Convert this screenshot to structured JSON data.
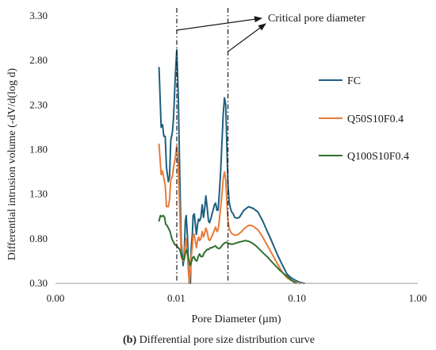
{
  "chart_data": {
    "type": "line",
    "xlabel": "Pore Diameter (µm)",
    "ylabel": "Differential intrusion volume (-dV/d(log d)",
    "x_scale": "log",
    "xlim": [
      0.001,
      1.0
    ],
    "ylim": [
      0.3,
      3.3
    ],
    "x_ticks": [
      0.001,
      0.01,
      0.1,
      1.0
    ],
    "x_tick_labels": [
      "0.00",
      "0.01",
      "0.10",
      "1.00"
    ],
    "y_ticks": [
      0.3,
      0.8,
      1.3,
      1.8,
      2.3,
      2.8,
      3.3
    ],
    "y_tick_labels": [
      "0.30",
      "0.80",
      "1.30",
      "1.80",
      "2.30",
      "2.80",
      "3.30"
    ],
    "grid": false,
    "legend_position": "right",
    "annotation": {
      "text": "Critical pore diameter",
      "targets_x": [
        0.0101,
        0.0268
      ]
    },
    "caption": {
      "bold": "(b)",
      "text": " Differential pore size distribution curve"
    },
    "series": [
      {
        "name": "FC",
        "color": "#1f5f7f",
        "x": [
          0.0072,
          0.0075,
          0.0077,
          0.0079,
          0.0081,
          0.0083,
          0.0086,
          0.0088,
          0.009,
          0.0093,
          0.0095,
          0.0098,
          0.0101,
          0.0104,
          0.0107,
          0.011,
          0.0114,
          0.0116,
          0.0119,
          0.0121,
          0.0124,
          0.0126,
          0.0128,
          0.0131,
          0.0133,
          0.0136,
          0.0138,
          0.0141,
          0.0144,
          0.0147,
          0.015,
          0.0153,
          0.0156,
          0.016,
          0.0164,
          0.0168,
          0.0172,
          0.0176,
          0.018,
          0.0185,
          0.0189,
          0.0193,
          0.0198,
          0.0202,
          0.0207,
          0.0212,
          0.0217,
          0.0222,
          0.0227,
          0.0233,
          0.0239,
          0.0245,
          0.0251,
          0.0257,
          0.0263,
          0.0268,
          0.0274,
          0.0281,
          0.0288,
          0.0296,
          0.0305,
          0.0318,
          0.0333,
          0.0348,
          0.0363,
          0.038,
          0.0397,
          0.0415,
          0.0434,
          0.0454,
          0.0475,
          0.0497,
          0.052,
          0.056,
          0.0605,
          0.065,
          0.07,
          0.076,
          0.083,
          0.09,
          0.098,
          0.106,
          0.115
        ],
        "y": [
          2.72,
          2.05,
          2.08,
          1.95,
          1.95,
          1.6,
          1.44,
          1.5,
          1.9,
          2.0,
          2.15,
          2.6,
          2.92,
          2.4,
          1.5,
          0.75,
          0.5,
          0.6,
          1.0,
          1.06,
          0.8,
          0.55,
          0.3,
          0.3,
          0.7,
          0.86,
          1.06,
          1.08,
          0.95,
          0.85,
          0.96,
          1.02,
          1.0,
          1.04,
          1.18,
          1.04,
          1.14,
          1.28,
          1.16,
          1.0,
          0.98,
          1.02,
          1.08,
          1.12,
          1.18,
          1.2,
          1.12,
          1.12,
          1.3,
          1.55,
          1.88,
          2.2,
          2.38,
          2.3,
          1.8,
          1.4,
          1.22,
          1.14,
          1.1,
          1.08,
          1.04,
          1.03,
          1.04,
          1.08,
          1.12,
          1.14,
          1.16,
          1.15,
          1.14,
          1.12,
          1.1,
          1.05,
          1.0,
          0.9,
          0.8,
          0.7,
          0.6,
          0.5,
          0.4,
          0.36,
          0.33,
          0.31,
          0.3
        ]
      },
      {
        "name": "Q50S10F0.4",
        "color": "#e87b3a",
        "x": [
          0.0072,
          0.0075,
          0.0077,
          0.0079,
          0.0081,
          0.0083,
          0.0086,
          0.0088,
          0.009,
          0.0093,
          0.0095,
          0.0098,
          0.0101,
          0.0104,
          0.0107,
          0.011,
          0.0114,
          0.0116,
          0.0119,
          0.0121,
          0.0124,
          0.0126,
          0.0128,
          0.0131,
          0.0133,
          0.0136,
          0.0138,
          0.0141,
          0.0144,
          0.0147,
          0.015,
          0.0153,
          0.0156,
          0.016,
          0.0164,
          0.0168,
          0.0172,
          0.0176,
          0.018,
          0.0185,
          0.0189,
          0.0193,
          0.0198,
          0.0202,
          0.0207,
          0.0212,
          0.0217,
          0.0222,
          0.0227,
          0.0233,
          0.0239,
          0.0245,
          0.0251,
          0.0257,
          0.0263,
          0.0268,
          0.0274,
          0.0281,
          0.0288,
          0.0296,
          0.0305,
          0.0318,
          0.0333,
          0.0348,
          0.0363,
          0.038,
          0.0397,
          0.0415,
          0.0434,
          0.0454,
          0.0475,
          0.0497,
          0.052,
          0.056,
          0.0605,
          0.065,
          0.07,
          0.076,
          0.083,
          0.09,
          0.098,
          0.106
        ],
        "y": [
          1.86,
          1.52,
          1.56,
          1.48,
          1.4,
          1.16,
          1.16,
          1.24,
          1.46,
          1.5,
          1.6,
          1.7,
          1.84,
          1.6,
          1.1,
          0.6,
          0.55,
          0.6,
          0.75,
          0.8,
          0.6,
          0.45,
          0.3,
          0.45,
          0.6,
          0.72,
          0.84,
          0.85,
          0.76,
          0.7,
          0.78,
          0.82,
          0.78,
          0.8,
          0.88,
          0.82,
          0.86,
          0.92,
          0.88,
          0.8,
          0.78,
          0.8,
          0.83,
          0.86,
          0.9,
          0.93,
          0.88,
          0.9,
          1.0,
          1.15,
          1.3,
          1.48,
          1.55,
          1.46,
          1.2,
          1.0,
          0.92,
          0.88,
          0.86,
          0.85,
          0.84,
          0.84,
          0.86,
          0.88,
          0.91,
          0.93,
          0.95,
          0.95,
          0.94,
          0.92,
          0.9,
          0.86,
          0.82,
          0.74,
          0.66,
          0.58,
          0.5,
          0.42,
          0.36,
          0.33,
          0.31,
          0.3
        ]
      },
      {
        "name": "Q100S10F0.4",
        "color": "#2f7030",
        "x": [
          0.0072,
          0.0074,
          0.0076,
          0.0078,
          0.008,
          0.0082,
          0.0084,
          0.0086,
          0.0089,
          0.0092,
          0.0095,
          0.0098,
          0.0101,
          0.0104,
          0.0107,
          0.011,
          0.0113,
          0.0116,
          0.0119,
          0.0122,
          0.0125,
          0.0128,
          0.0131,
          0.0134,
          0.0137,
          0.014,
          0.0144,
          0.0148,
          0.0152,
          0.0156,
          0.016,
          0.0165,
          0.017,
          0.0175,
          0.018,
          0.0186,
          0.0192,
          0.0198,
          0.0204,
          0.0211,
          0.0218,
          0.0225,
          0.0233,
          0.0241,
          0.025,
          0.026,
          0.027,
          0.0282,
          0.0295,
          0.031,
          0.0328,
          0.035,
          0.0375,
          0.04,
          0.0428,
          0.0458,
          0.049,
          0.0525,
          0.0565,
          0.061,
          0.066,
          0.0715,
          0.0775,
          0.084,
          0.091,
          0.098
        ],
        "y": [
          1.0,
          1.06,
          1.05,
          1.06,
          1.04,
          0.96,
          0.95,
          0.92,
          0.88,
          0.8,
          0.76,
          0.73,
          0.72,
          0.7,
          0.68,
          0.62,
          0.57,
          0.56,
          0.64,
          0.68,
          0.62,
          0.54,
          0.5,
          0.55,
          0.59,
          0.6,
          0.56,
          0.55,
          0.6,
          0.63,
          0.6,
          0.6,
          0.64,
          0.66,
          0.68,
          0.68,
          0.7,
          0.7,
          0.71,
          0.72,
          0.7,
          0.69,
          0.7,
          0.73,
          0.75,
          0.76,
          0.75,
          0.74,
          0.74,
          0.75,
          0.76,
          0.77,
          0.78,
          0.77,
          0.75,
          0.72,
          0.68,
          0.64,
          0.6,
          0.55,
          0.5,
          0.45,
          0.41,
          0.37,
          0.33,
          0.3
        ]
      }
    ]
  }
}
